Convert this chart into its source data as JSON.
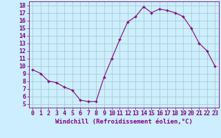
{
  "x": [
    0,
    1,
    2,
    3,
    4,
    5,
    6,
    7,
    8,
    9,
    10,
    11,
    12,
    13,
    14,
    15,
    16,
    17,
    18,
    19,
    20,
    21,
    22,
    23
  ],
  "y": [
    9.5,
    9.0,
    8.0,
    7.8,
    7.2,
    6.8,
    5.5,
    5.3,
    5.3,
    8.5,
    11.0,
    13.5,
    15.8,
    16.5,
    17.8,
    17.0,
    17.5,
    17.3,
    17.0,
    16.5,
    15.0,
    13.0,
    12.0,
    10.0
  ],
  "line_color": "#800080",
  "marker": "D",
  "marker_size": 2.0,
  "bg_color": "#cceeff",
  "grid_color": "#aacccc",
  "xlabel": "Windchill (Refroidissement éolien,°C)",
  "xlim": [
    -0.5,
    23.5
  ],
  "ylim": [
    4.5,
    18.5
  ],
  "yticks": [
    5,
    6,
    7,
    8,
    9,
    10,
    11,
    12,
    13,
    14,
    15,
    16,
    17,
    18
  ],
  "xticks": [
    0,
    1,
    2,
    3,
    4,
    5,
    6,
    7,
    8,
    9,
    10,
    11,
    12,
    13,
    14,
    15,
    16,
    17,
    18,
    19,
    20,
    21,
    22,
    23
  ],
  "tick_color": "#800080",
  "label_color": "#800080",
  "label_fontsize": 6.5,
  "tick_fontsize": 6.0,
  "figsize": [
    3.2,
    2.0
  ],
  "dpi": 100
}
